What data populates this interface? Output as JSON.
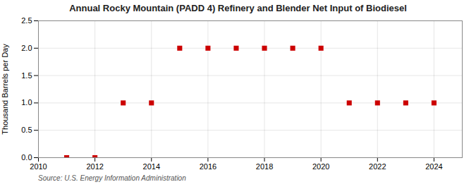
{
  "chart_data": {
    "type": "scatter",
    "title": "Annual Rocky Mountain (PADD 4) Refinery and Blender Net Input of Biodiesel",
    "ylabel": "Thousand Barrels per Day",
    "source": "Source: U.S. Energy Information Administration",
    "x": [
      2011,
      2012,
      2013,
      2014,
      2015,
      2016,
      2017,
      2018,
      2019,
      2020,
      2021,
      2022,
      2023,
      2024
    ],
    "values": [
      0.0,
      0.0,
      1.0,
      1.0,
      2.0,
      2.0,
      2.0,
      2.0,
      2.0,
      2.0,
      1.0,
      1.0,
      1.0,
      1.0
    ],
    "color": "#cc0000",
    "marker": "square",
    "xlim": [
      2010,
      2025
    ],
    "ylim": [
      0,
      2.5
    ],
    "xticks": [
      2010,
      2012,
      2014,
      2016,
      2018,
      2020,
      2022,
      2024
    ],
    "yticks": [
      {
        "value": 0.0,
        "label": "0.0"
      },
      0.5,
      {
        "value": 1.0,
        "label": "1.0"
      },
      1.5,
      {
        "value": 2.0,
        "label": "2.0"
      },
      2.5
    ],
    "grid": true
  }
}
